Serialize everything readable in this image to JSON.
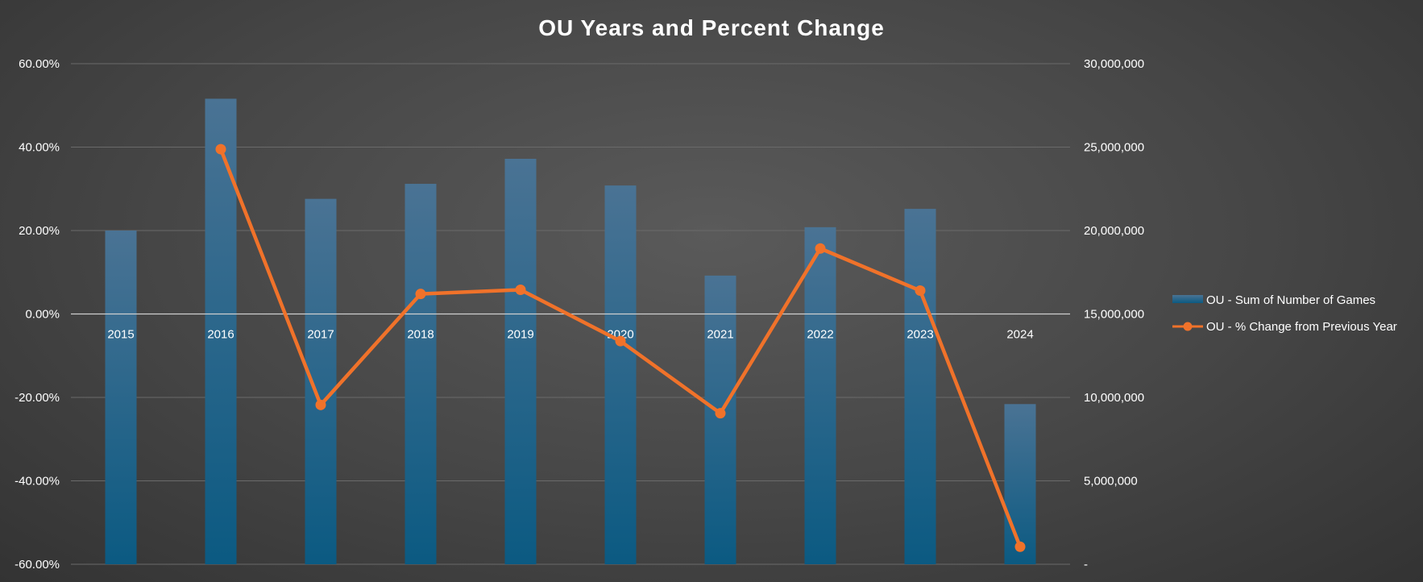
{
  "chart_data": {
    "type": "bar",
    "title": "OU Years and Percent Change",
    "categories": [
      "2015",
      "2016",
      "2017",
      "2018",
      "2019",
      "2020",
      "2021",
      "2022",
      "2023",
      "2024"
    ],
    "series": [
      {
        "name": "OU - Sum of Number of Games",
        "type": "bar",
        "axis": "right",
        "values": [
          20000000,
          27900000,
          21900000,
          22800000,
          24300000,
          22700000,
          17300000,
          20200000,
          21300000,
          9600000
        ]
      },
      {
        "name": "OU - % Change from Previous Year",
        "type": "line",
        "axis": "left",
        "values": [
          null,
          39.5,
          -21.8,
          4.8,
          5.8,
          -6.5,
          -23.8,
          15.7,
          5.6,
          -55.8
        ]
      }
    ],
    "y_left": {
      "ylim": [
        -60,
        60
      ],
      "ticks": [
        60,
        40,
        20,
        0,
        -20,
        -40,
        -60
      ],
      "tick_labels": [
        "60.00%",
        "40.00%",
        "20.00%",
        "0.00%",
        "-20.00%",
        "-40.00%",
        "-60.00%"
      ]
    },
    "y_right": {
      "ylim": [
        0,
        30000000
      ],
      "ticks": [
        30000000,
        25000000,
        20000000,
        15000000,
        10000000,
        5000000,
        0
      ],
      "tick_labels": [
        "30,000,000",
        "25,000,000",
        "20,000,000",
        "15,000,000",
        "10,000,000",
        "5,000,000",
        "-"
      ]
    },
    "grid": true,
    "legend_position": "right",
    "colors": {
      "bar_top": "#4a7394",
      "bar_bottom": "#0b5a82",
      "line": "#f0722a",
      "grid": "#6a6a6a",
      "zero_line": "#cfcfcf"
    }
  }
}
